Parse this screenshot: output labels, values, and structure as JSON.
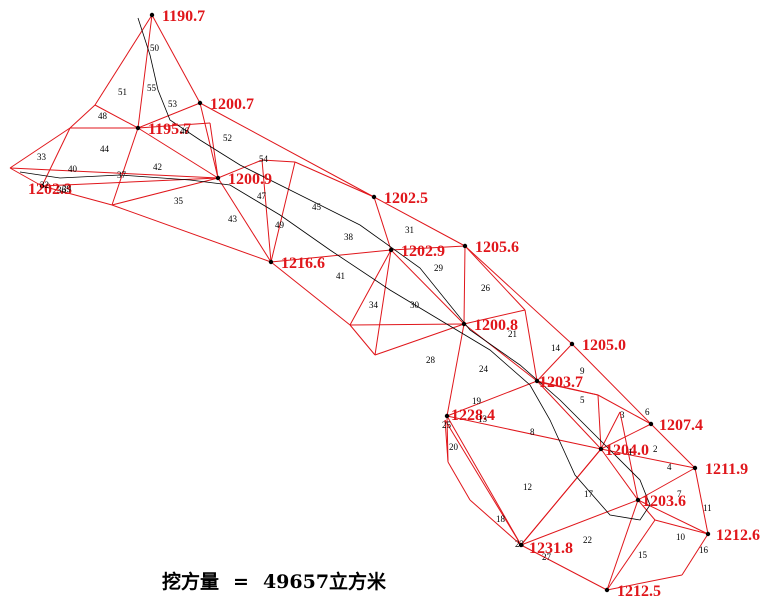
{
  "summary": {
    "label": "挖方量",
    "equals": "=",
    "value": "49657",
    "unit": "立方米"
  },
  "elevation_points": [
    {
      "label": "1190.7"
    },
    {
      "label": "1200.7"
    },
    {
      "label": "1195.7"
    },
    {
      "label": "1202.3"
    },
    {
      "label": "1200.9"
    },
    {
      "label": "1202.5"
    },
    {
      "label": "1205.6"
    },
    {
      "label": "1202.9"
    },
    {
      "label": "1216.6"
    },
    {
      "label": "1200.8"
    },
    {
      "label": "1205.0"
    },
    {
      "label": "1203.7"
    },
    {
      "label": "1228.4"
    },
    {
      "label": "1207.4"
    },
    {
      "label": "1204.0"
    },
    {
      "label": "1211.9"
    },
    {
      "label": "1203.6"
    },
    {
      "label": "1212.6"
    },
    {
      "label": "1231.8"
    },
    {
      "label": "1212.5"
    }
  ],
  "triangle_ids": [
    "1",
    "2",
    "3",
    "4",
    "5",
    "6",
    "7",
    "8",
    "9",
    "10",
    "11",
    "12",
    "13",
    "14",
    "15",
    "16",
    "17",
    "18",
    "19",
    "20",
    "21",
    "22",
    "23",
    "24",
    "25",
    "26",
    "27",
    "28",
    "29",
    "30",
    "31",
    "32",
    "33",
    "34",
    "35",
    "36",
    "37",
    "38",
    "39",
    "40",
    "41",
    "42",
    "43",
    "44",
    "45",
    "46",
    "47",
    "48",
    "49",
    "50",
    "51",
    "52",
    "53",
    "54",
    "55"
  ],
  "colors": {
    "edges": "#e0161b",
    "labels": "#e0161b",
    "centerline": "#000000",
    "ids": "#000000"
  }
}
